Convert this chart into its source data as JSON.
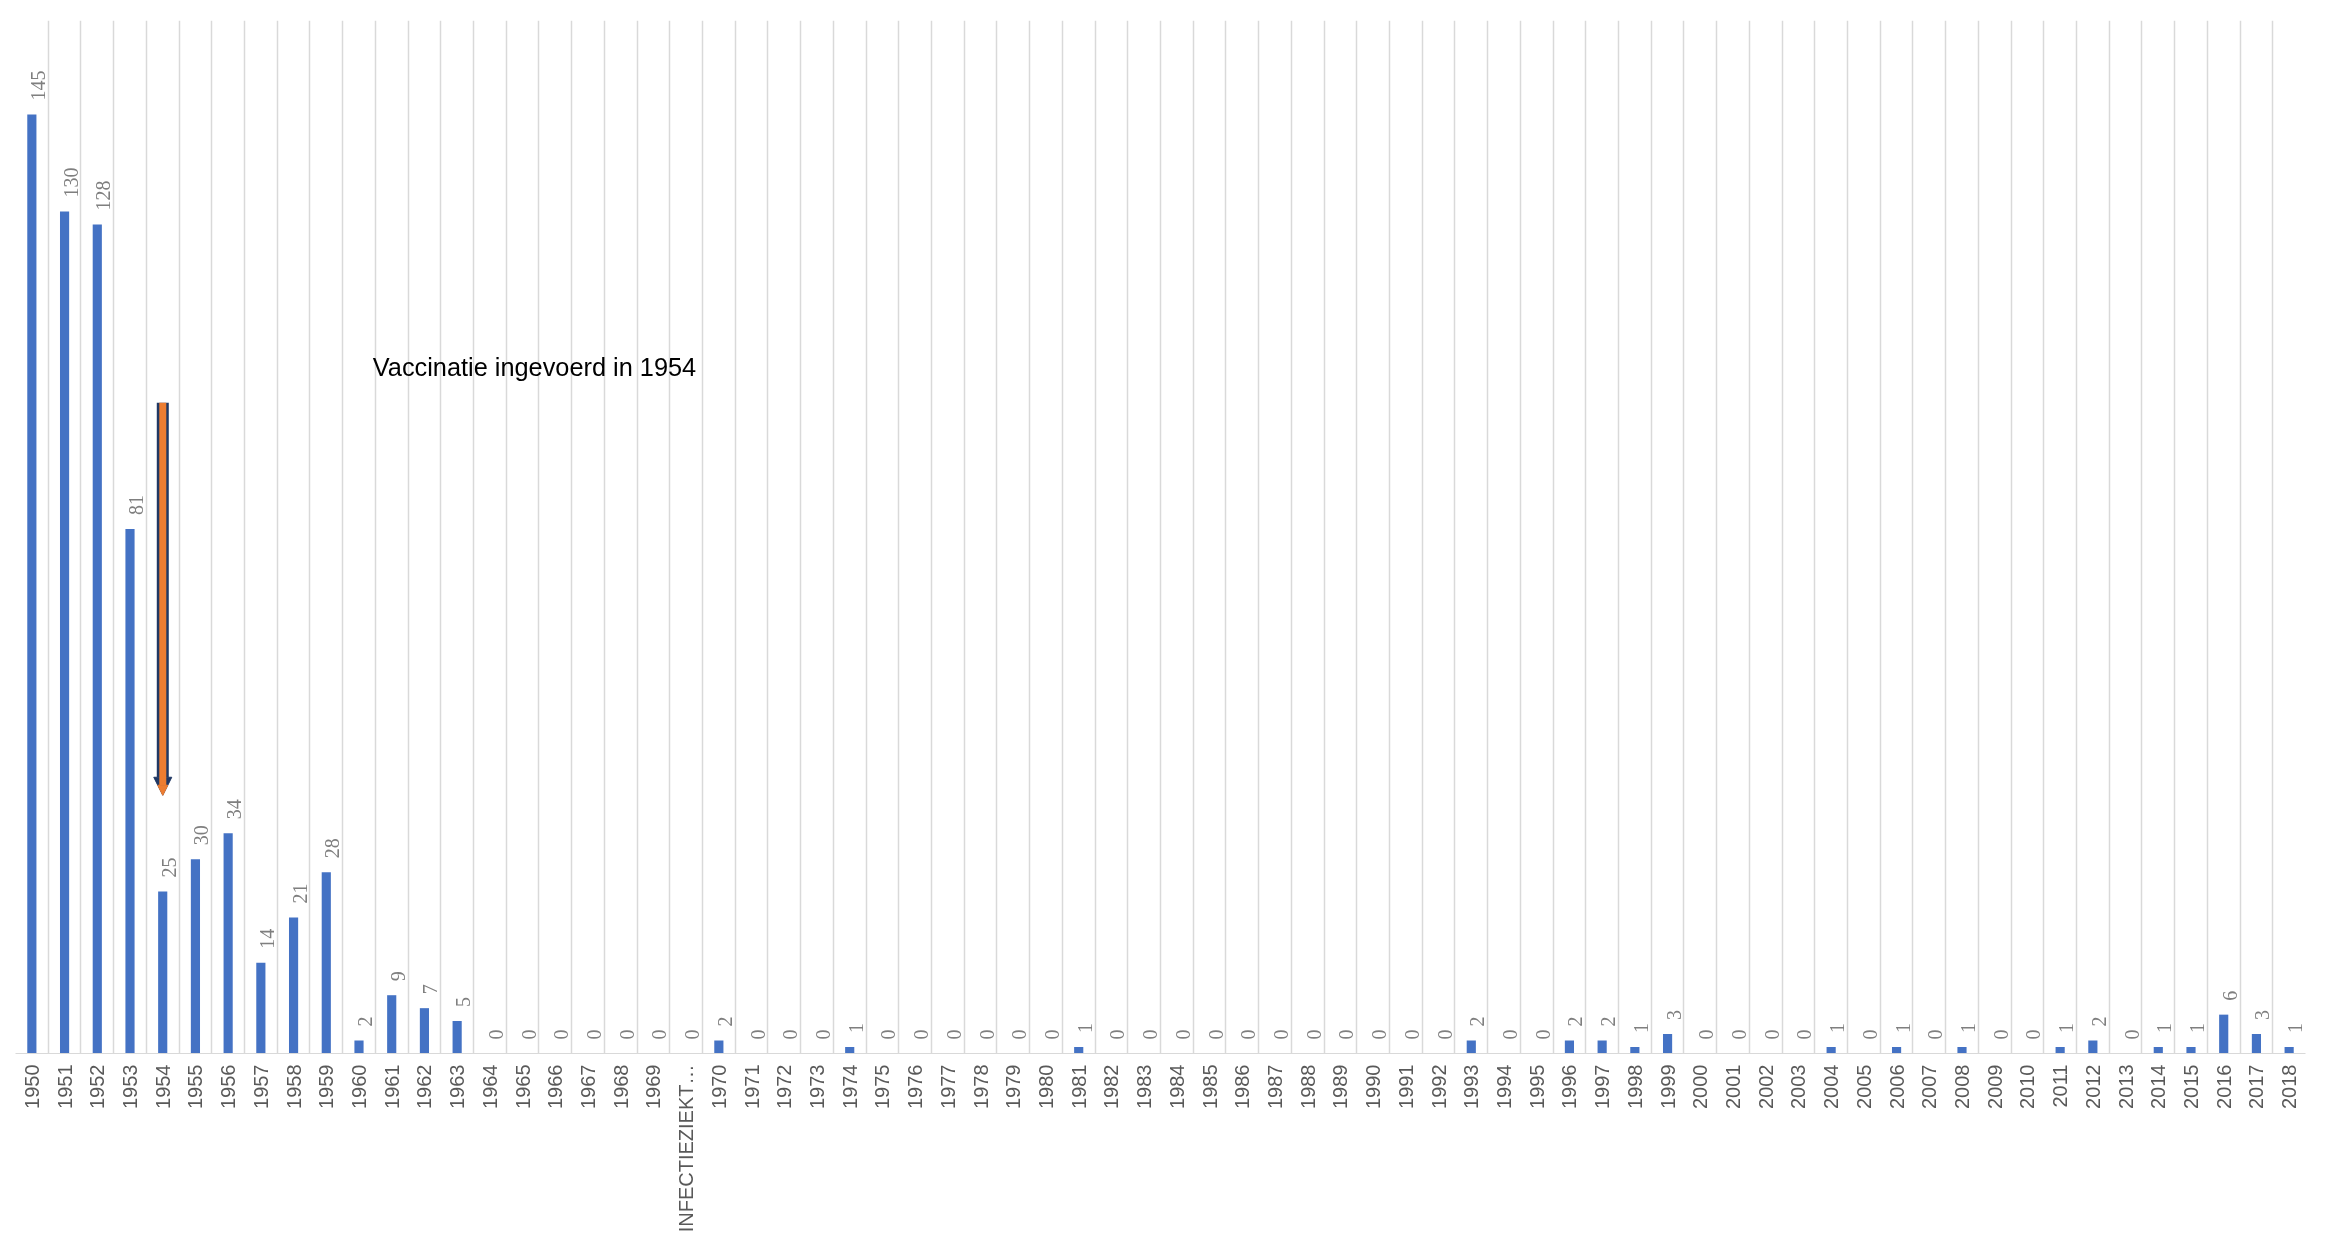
{
  "chart_data": {
    "type": "bar",
    "categories": [
      "1950",
      "1951",
      "1952",
      "1953",
      "1954",
      "1955",
      "1956",
      "1957",
      "1958",
      "1959",
      "1960",
      "1961",
      "1962",
      "1963",
      "1964",
      "1965",
      "1966",
      "1967",
      "1968",
      "1969",
      "INFECTIEZIEKT…",
      "1970",
      "1971",
      "1972",
      "1973",
      "1974",
      "1975",
      "1976",
      "1977",
      "1978",
      "1979",
      "1980",
      "1981",
      "1982",
      "1983",
      "1984",
      "1985",
      "1986",
      "1987",
      "1988",
      "1989",
      "1990",
      "1991",
      "1992",
      "1993",
      "1994",
      "1995",
      "1996",
      "1997",
      "1998",
      "1999",
      "2000",
      "2001",
      "2002",
      "2003",
      "2004",
      "2005",
      "2006",
      "2007",
      "2008",
      "2009",
      "2010",
      "2011",
      "2012",
      "2013",
      "2014",
      "2015",
      "2016",
      "2017",
      "2018"
    ],
    "values": [
      145,
      130,
      128,
      81,
      25,
      30,
      34,
      14,
      21,
      28,
      2,
      9,
      7,
      5,
      0,
      0,
      0,
      0,
      0,
      0,
      0,
      2,
      0,
      0,
      0,
      1,
      0,
      0,
      0,
      0,
      0,
      0,
      1,
      0,
      0,
      0,
      0,
      0,
      0,
      0,
      0,
      0,
      0,
      0,
      2,
      0,
      0,
      2,
      2,
      1,
      3,
      0,
      0,
      0,
      0,
      1,
      0,
      1,
      0,
      1,
      0,
      0,
      1,
      2,
      0,
      1,
      1,
      6,
      3,
      1
    ],
    "color": "#4472c4",
    "data_labels": true,
    "grid": "x",
    "annotations": [
      "Vaccinatie ingevoerd in 1954"
    ]
  }
}
